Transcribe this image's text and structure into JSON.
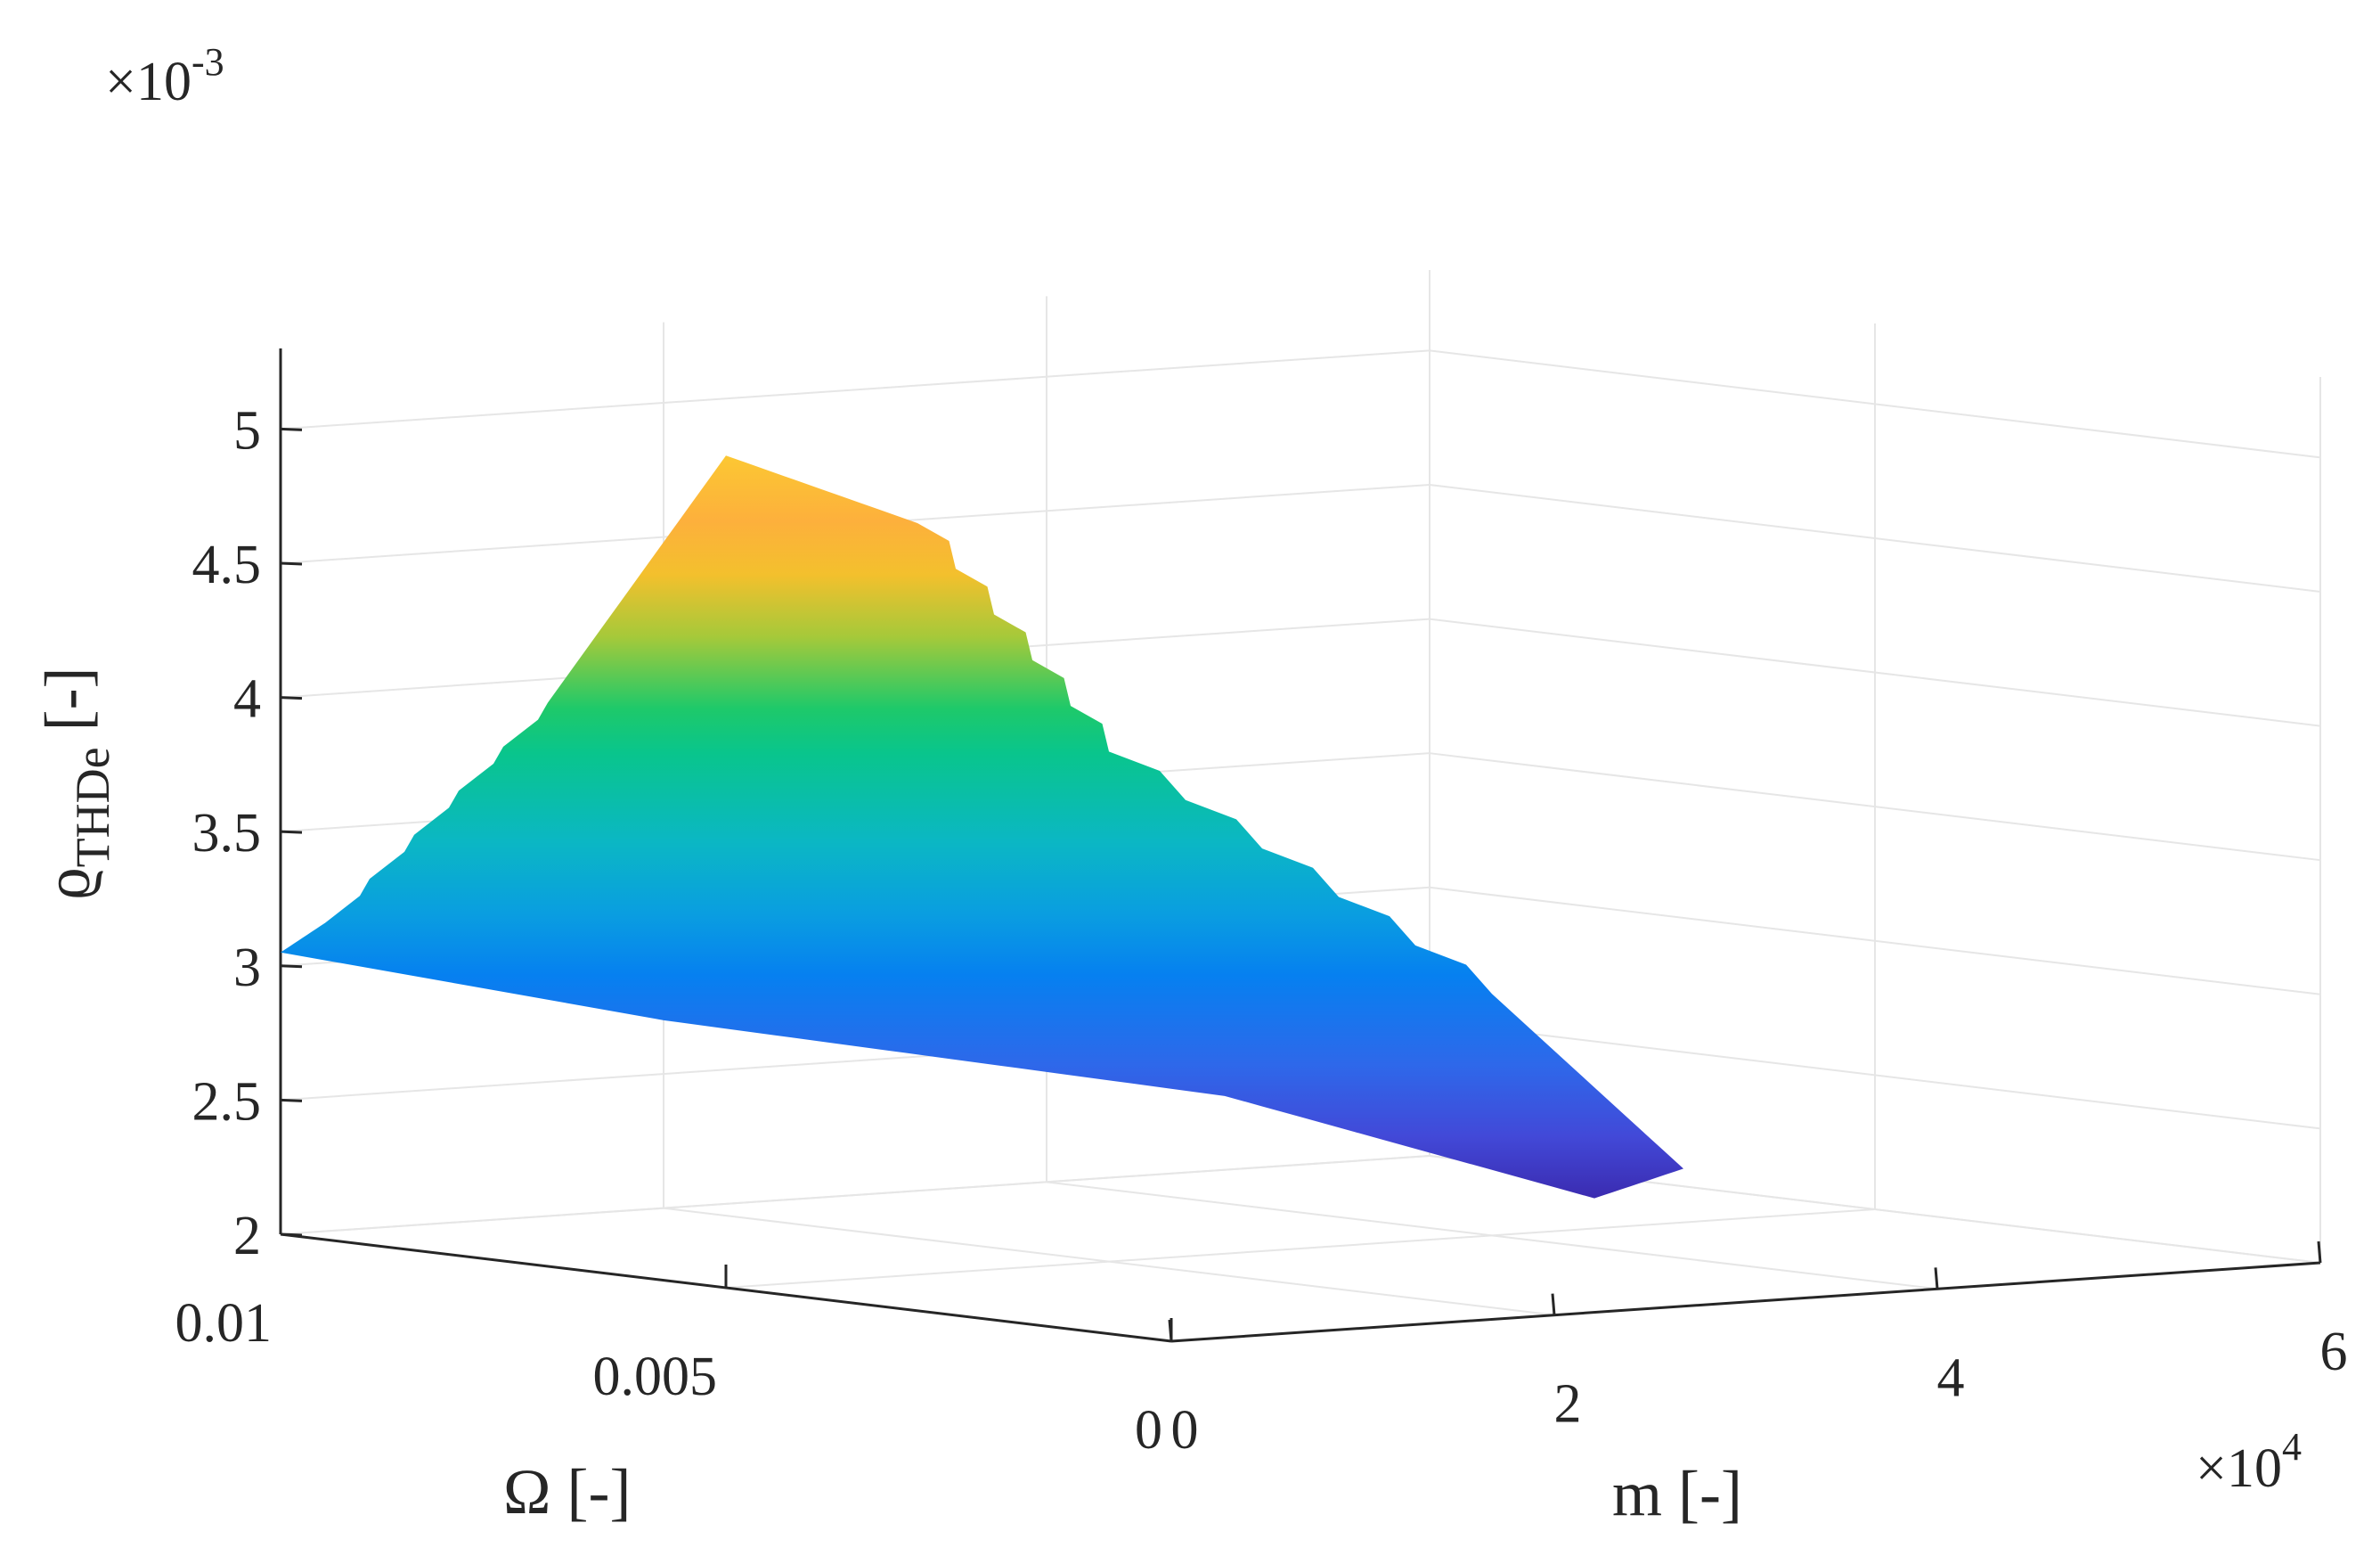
{
  "chart_data": {
    "type": "surface3d",
    "colormap": "parula",
    "x_axis": {
      "label_main": "m",
      "label_unit": "[-]",
      "ticks": [
        "0",
        "2",
        "4",
        "6"
      ],
      "multiplier_base": "×10",
      "multiplier_exp": "4",
      "range": [
        0,
        60000
      ]
    },
    "y_axis": {
      "label_main": "Ω",
      "label_unit": "[-]",
      "ticks": [
        "0",
        "0.005",
        "0.01"
      ],
      "range": [
        0,
        0.01
      ]
    },
    "z_axis": {
      "label_main": "ϱ",
      "label_sub": "THDe",
      "label_unit": "[-]",
      "ticks": [
        "2",
        "2.5",
        "3",
        "3.5",
        "4",
        "4.5",
        "5"
      ],
      "multiplier_base": "×10",
      "multiplier_exp": "-3",
      "range": [
        0.002,
        0.0053
      ]
    },
    "grid": true,
    "surface_points": [
      {
        "m": 0,
        "omega": 0.01,
        "z": 0.00305
      },
      {
        "m": 0,
        "omega": 0.0095,
        "z": 0.00318
      },
      {
        "m": 0,
        "omega": 0.007,
        "z": 0.0041
      },
      {
        "m": 0,
        "omega": 0.005,
        "z": 0.0051
      },
      {
        "m": 10000,
        "omega": 0.005,
        "z": 0.0048
      },
      {
        "m": 20000,
        "omega": 0.005,
        "z": 0.0039
      },
      {
        "m": 40000,
        "omega": 0.005,
        "z": 0.0029
      },
      {
        "m": 50000,
        "omega": 0.005,
        "z": 0.0022
      },
      {
        "m": 50000,
        "omega": 0.006,
        "z": 0.00205
      },
      {
        "m": 40000,
        "omega": 0.008,
        "z": 0.0024
      },
      {
        "m": 20000,
        "omega": 0.01,
        "z": 0.0027
      }
    ]
  }
}
